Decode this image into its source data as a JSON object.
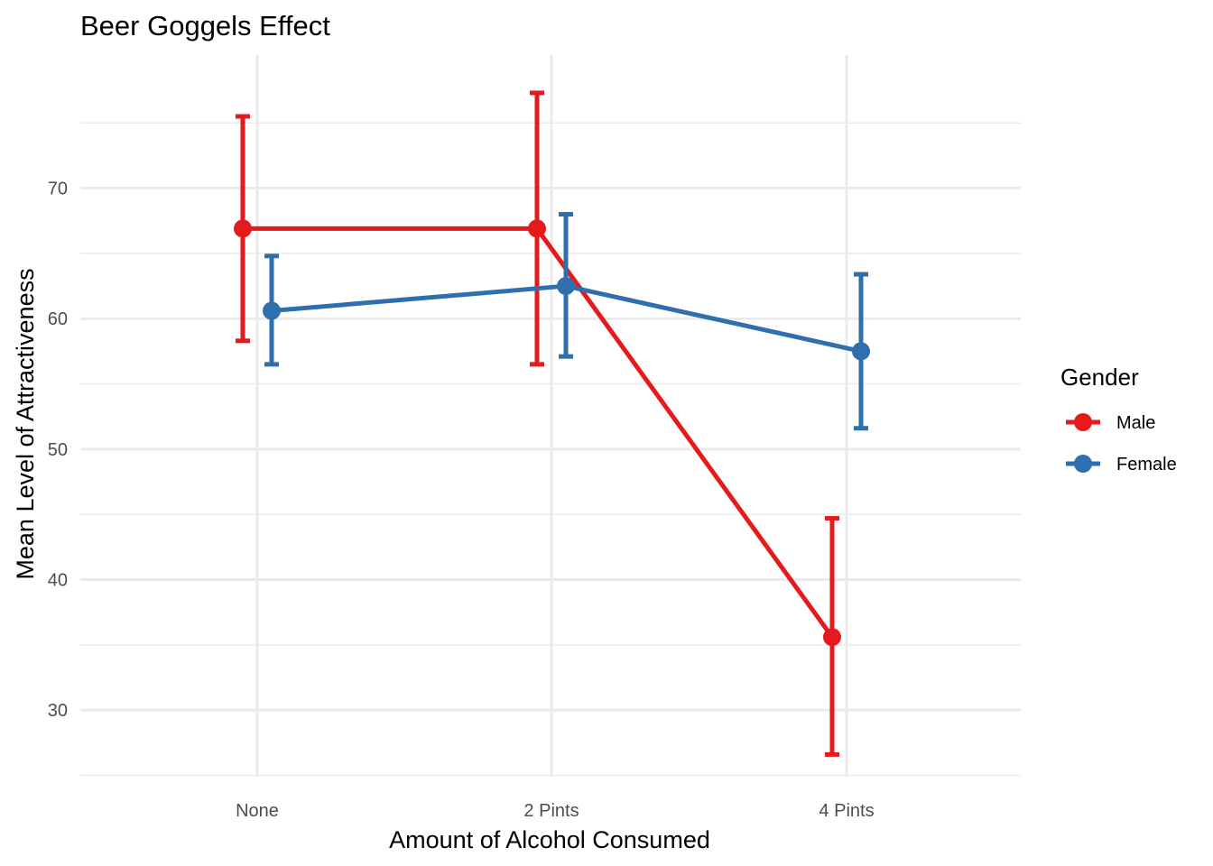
{
  "chart_data": {
    "type": "line",
    "title": "Beer Goggels Effect",
    "xlabel": "Amount of Alcohol Consumed",
    "ylabel": "Mean Level of Attractiveness",
    "categories": [
      "None",
      "2 Pints",
      "4 Pints"
    ],
    "ylim": [
      24.9,
      80.2
    ],
    "yticks": [
      30,
      40,
      50,
      60,
      70
    ],
    "grid": true,
    "legend": {
      "title": "Gender",
      "position": "right"
    },
    "series": [
      {
        "name": "Male",
        "color": "#e41a1c",
        "values": [
          66.9,
          66.9,
          35.6
        ],
        "lower": [
          58.3,
          56.5,
          26.6
        ],
        "upper": [
          75.5,
          77.3,
          44.7
        ]
      },
      {
        "name": "Female",
        "color": "#2f6fae",
        "values": [
          60.6,
          62.5,
          57.5
        ],
        "lower": [
          56.5,
          57.1,
          51.6
        ],
        "upper": [
          64.8,
          68.0,
          63.4
        ]
      }
    ]
  }
}
